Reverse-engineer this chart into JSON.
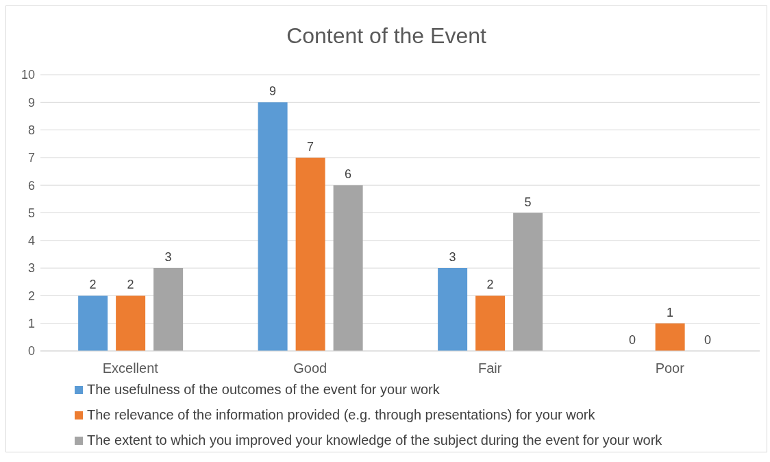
{
  "chart_data": {
    "type": "bar",
    "title": "Content of the Event",
    "categories": [
      "Excellent",
      "Good",
      "Fair",
      "Poor"
    ],
    "series": [
      {
        "name": "The usefulness of the outcomes of the event for your work",
        "color": "#5b9bd5",
        "values": [
          2,
          9,
          3,
          0
        ]
      },
      {
        "name": "The relevance of the information provided (e.g. through presentations) for your work",
        "color": "#ed7d31",
        "values": [
          2,
          7,
          2,
          1
        ]
      },
      {
        "name": "The extent to which you improved your knowledge of the subject during the event for your work",
        "color": "#a5a5a5",
        "values": [
          3,
          6,
          5,
          0
        ]
      }
    ],
    "ylim": [
      0,
      10
    ],
    "yticks": [
      0,
      1,
      2,
      3,
      4,
      5,
      6,
      7,
      8,
      9,
      10
    ],
    "grid": "y",
    "legend": "bottom",
    "data_labels": true
  }
}
